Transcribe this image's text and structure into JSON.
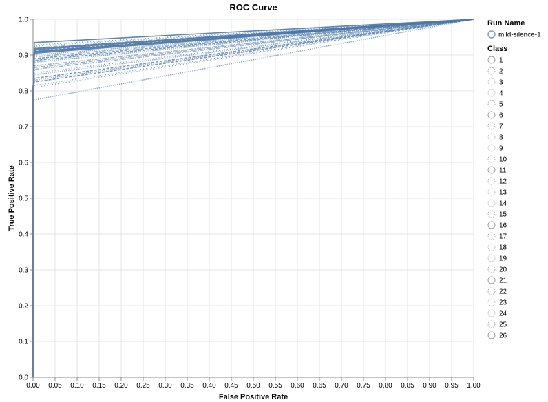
{
  "chart_data": {
    "type": "line",
    "title": "ROC Curve",
    "xlabel": "False Positive Rate",
    "ylabel": "True Positive Rate",
    "xlim": [
      0,
      1
    ],
    "ylim": [
      0,
      1
    ],
    "grid": true,
    "legend_position": "right",
    "x_ticks": [
      "0.00",
      "0.05",
      "0.10",
      "0.15",
      "0.20",
      "0.25",
      "0.30",
      "0.35",
      "0.40",
      "0.45",
      "0.50",
      "0.55",
      "0.60",
      "0.65",
      "0.70",
      "0.75",
      "0.80",
      "0.85",
      "0.90",
      "0.95",
      "1.00"
    ],
    "y_ticks": [
      "0.0",
      "0.1",
      "0.2",
      "0.3",
      "0.4",
      "0.5",
      "0.6",
      "0.7",
      "0.8",
      "0.9",
      "1.0"
    ],
    "series_color": "#4c78a8",
    "legend": {
      "run_title": "Run Name",
      "runs": [
        "mild-silence-1"
      ],
      "class_title": "Class",
      "classes": [
        "1",
        "2",
        "3",
        "4",
        "5",
        "6",
        "7",
        "8",
        "9",
        "10",
        "11",
        "12",
        "13",
        "14",
        "15",
        "16",
        "17",
        "18",
        "19",
        "20",
        "21",
        "22",
        "23",
        "24",
        "25",
        "26"
      ]
    },
    "series": [
      {
        "name": "1",
        "x": [
          0,
          0,
          0.003,
          1
        ],
        "y": [
          0,
          0.8,
          0.935,
          1
        ]
      },
      {
        "name": "2",
        "x": [
          0,
          0,
          0.003,
          1
        ],
        "y": [
          0,
          0.8,
          0.912,
          1
        ]
      },
      {
        "name": "3",
        "x": [
          0,
          0,
          0.003,
          1
        ],
        "y": [
          0,
          0.78,
          0.775,
          1
        ]
      },
      {
        "name": "4",
        "x": [
          0,
          0,
          0.003,
          1
        ],
        "y": [
          0,
          0.8,
          0.865,
          1
        ]
      },
      {
        "name": "5",
        "x": [
          0,
          0,
          0.003,
          1
        ],
        "y": [
          0,
          0.8,
          0.928,
          1
        ]
      },
      {
        "name": "6",
        "x": [
          0,
          0,
          0.003,
          1
        ],
        "y": [
          0,
          0.8,
          0.905,
          1
        ]
      },
      {
        "name": "7",
        "x": [
          0,
          0,
          0.003,
          1
        ],
        "y": [
          0,
          0.8,
          0.835,
          1
        ]
      },
      {
        "name": "8",
        "x": [
          0,
          0,
          0.003,
          1
        ],
        "y": [
          0,
          0.8,
          0.88,
          1
        ]
      },
      {
        "name": "9",
        "x": [
          0,
          0,
          0.003,
          1
        ],
        "y": [
          0,
          0.8,
          0.92,
          1
        ]
      },
      {
        "name": "10",
        "x": [
          0,
          0,
          0.003,
          1
        ],
        "y": [
          0,
          0.8,
          0.815,
          1
        ]
      },
      {
        "name": "11",
        "x": [
          0,
          0,
          0.003,
          1
        ],
        "y": [
          0,
          0.8,
          0.91,
          1
        ]
      },
      {
        "name": "12",
        "x": [
          0,
          0,
          0.003,
          1
        ],
        "y": [
          0,
          0.8,
          0.89,
          1
        ]
      },
      {
        "name": "13",
        "x": [
          0,
          0,
          0.003,
          1
        ],
        "y": [
          0,
          0.8,
          0.845,
          1
        ]
      },
      {
        "name": "14",
        "x": [
          0,
          0,
          0.003,
          1
        ],
        "y": [
          0,
          0.8,
          0.86,
          1
        ]
      },
      {
        "name": "15",
        "x": [
          0,
          0,
          0.003,
          1
        ],
        "y": [
          0,
          0.8,
          0.925,
          1
        ]
      },
      {
        "name": "16",
        "x": [
          0,
          0,
          0.003,
          1
        ],
        "y": [
          0,
          0.8,
          0.918,
          1
        ]
      },
      {
        "name": "17",
        "x": [
          0,
          0,
          0.003,
          1
        ],
        "y": [
          0,
          0.8,
          0.825,
          1
        ]
      },
      {
        "name": "18",
        "x": [
          0,
          0,
          0.003,
          1
        ],
        "y": [
          0,
          0.8,
          0.9,
          1
        ]
      },
      {
        "name": "19",
        "x": [
          0,
          0,
          0.003,
          1
        ],
        "y": [
          0,
          0.8,
          0.87,
          1
        ]
      },
      {
        "name": "20",
        "x": [
          0,
          0,
          0.003,
          1
        ],
        "y": [
          0,
          0.8,
          0.81,
          1
        ]
      },
      {
        "name": "21",
        "x": [
          0,
          0,
          0.003,
          1
        ],
        "y": [
          0,
          0.8,
          0.908,
          1
        ]
      },
      {
        "name": "22",
        "x": [
          0,
          0,
          0.003,
          1
        ],
        "y": [
          0,
          0.8,
          0.885,
          1
        ]
      },
      {
        "name": "23",
        "x": [
          0,
          0,
          0.003,
          1
        ],
        "y": [
          0,
          0.8,
          0.83,
          1
        ]
      },
      {
        "name": "24",
        "x": [
          0,
          0,
          0.003,
          1
        ],
        "y": [
          0,
          0.8,
          0.895,
          1
        ]
      },
      {
        "name": "25",
        "x": [
          0,
          0,
          0.003,
          1
        ],
        "y": [
          0,
          0.8,
          0.85,
          1
        ]
      },
      {
        "name": "26",
        "x": [
          0,
          0,
          0.003,
          1
        ],
        "y": [
          0,
          0.8,
          0.915,
          1
        ]
      }
    ]
  }
}
